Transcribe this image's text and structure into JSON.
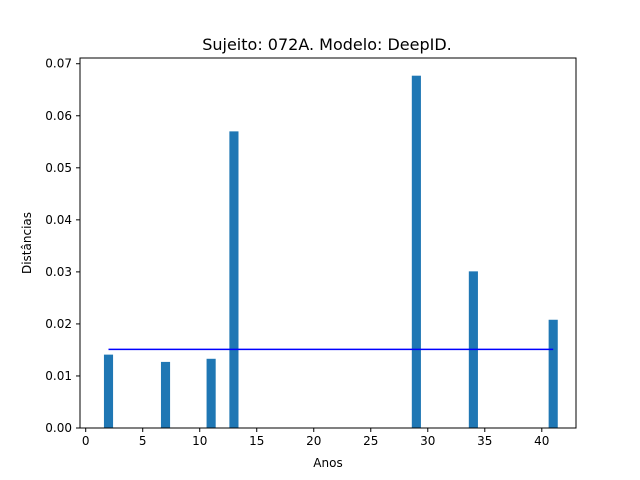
{
  "chart_data": {
    "type": "bar",
    "title": "Sujeito: 072A. Modelo: DeepID.",
    "xlabel": "Anos",
    "ylabel": "Distâncias",
    "x": [
      2,
      7,
      11,
      13,
      29,
      34,
      41
    ],
    "values": [
      0.0141,
      0.0127,
      0.0133,
      0.057,
      0.0677,
      0.0301,
      0.0208
    ],
    "xlim": [
      -0.5,
      43.0
    ],
    "ylim": [
      0,
      0.0711
    ],
    "xticks": [
      0,
      5,
      10,
      15,
      20,
      25,
      30,
      35,
      40
    ],
    "xtick_labels": [
      "0",
      "5",
      "10",
      "15",
      "20",
      "25",
      "30",
      "35",
      "40"
    ],
    "yticks": [
      0,
      0.01,
      0.02,
      0.03,
      0.04,
      0.05,
      0.06,
      0.07
    ],
    "ytick_labels": [
      "0.00",
      "0.01",
      "0.02",
      "0.03",
      "0.04",
      "0.05",
      "0.06",
      "0.07"
    ],
    "bar_width": 0.8,
    "bar_color": "#1f77b4",
    "reference_line": {
      "value": 0.0151,
      "x_range": [
        2,
        41
      ],
      "color": "#0000ff"
    },
    "grid": false,
    "legend": "none"
  }
}
